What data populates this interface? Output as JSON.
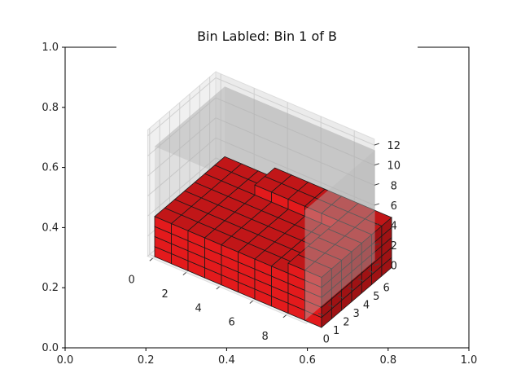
{
  "chart_data": {
    "type": "bar",
    "title": "Bin Labled: Bin 1 of B",
    "outer_axes": {
      "x_ticks": [
        "0.0",
        "0.2",
        "0.4",
        "0.6",
        "0.8",
        "1.0"
      ],
      "y_ticks": [
        "0.0",
        "0.2",
        "0.4",
        "0.6",
        "0.8",
        "1.0"
      ],
      "xlim": [
        0,
        1
      ],
      "ylim": [
        0,
        1
      ]
    },
    "axes_3d": {
      "x_ticks": [
        "0",
        "2",
        "4",
        "6",
        "8"
      ],
      "y_ticks": [
        "0",
        "1",
        "2",
        "3",
        "4",
        "5",
        "6"
      ],
      "z_ticks": [
        "0",
        "2",
        "4",
        "6",
        "8",
        "10",
        "12"
      ],
      "bin_dims": [
        10,
        7,
        12
      ],
      "grid": true
    },
    "series": [
      {
        "fill": "#e31a1c",
        "edge": "#1a1a1a",
        "height_map": [
          [
            4,
            4,
            4,
            4,
            4,
            4,
            4
          ],
          [
            4,
            4,
            4,
            4,
            4,
            4,
            4
          ],
          [
            4,
            4,
            4,
            4,
            4,
            4,
            4
          ],
          [
            4,
            4,
            4,
            4,
            4,
            5,
            5
          ],
          [
            4,
            4,
            4,
            4,
            4,
            5,
            5
          ],
          [
            4,
            4,
            4,
            4,
            4,
            5,
            5
          ],
          [
            4,
            4,
            4,
            4,
            4,
            5,
            5
          ],
          [
            4,
            4,
            4,
            4,
            4,
            5,
            5
          ],
          [
            5,
            5,
            5,
            5,
            5,
            5,
            5
          ],
          [
            5,
            5,
            5,
            5,
            5,
            5,
            5
          ]
        ]
      }
    ],
    "bin_color": "#aaaaaa"
  }
}
